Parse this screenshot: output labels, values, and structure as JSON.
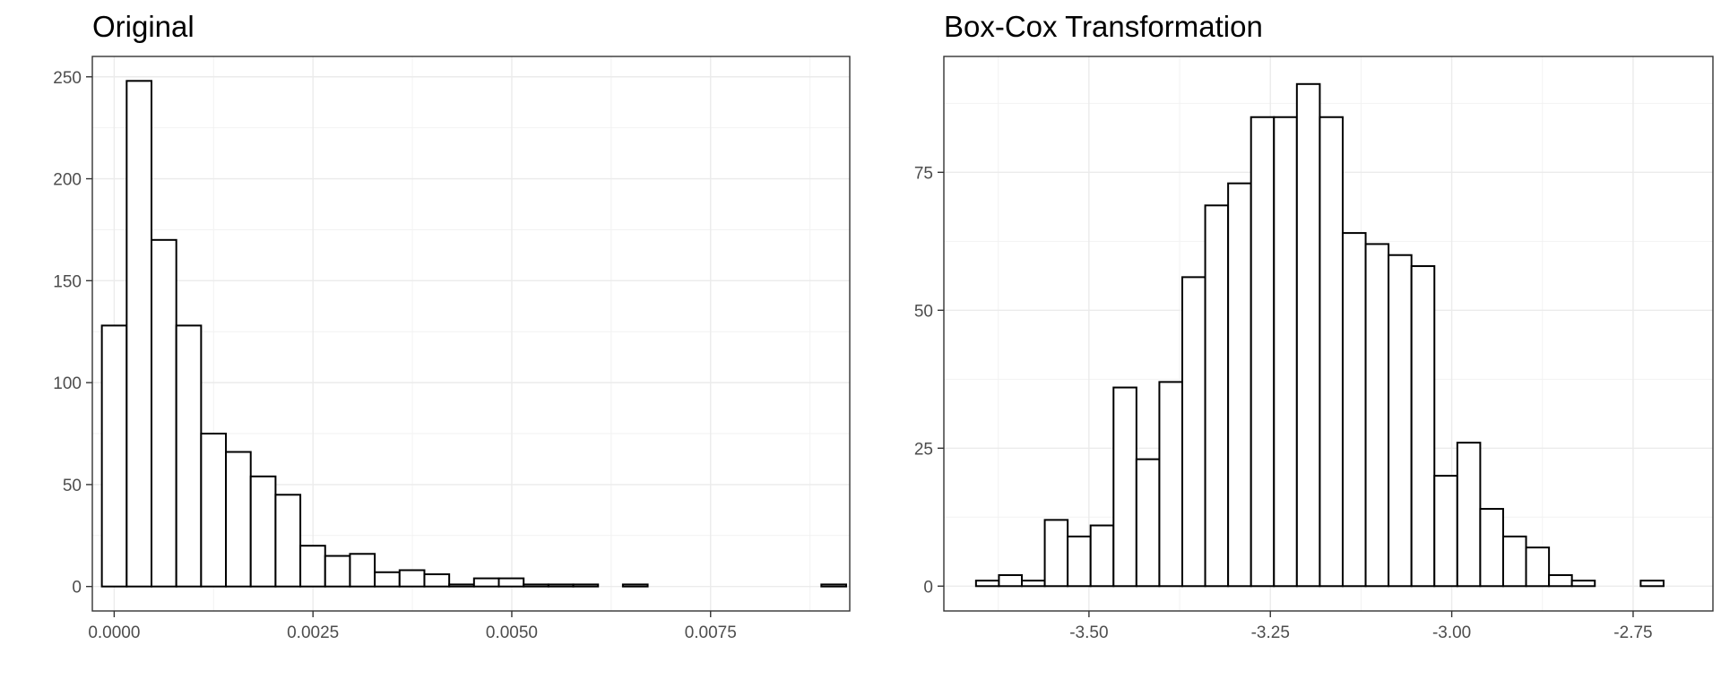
{
  "chart_data": [
    {
      "type": "bar",
      "title": "Original",
      "xlabel": "",
      "ylabel": "",
      "xlim": [
        -0.000275,
        0.00925
      ],
      "ylim": [
        -12,
        260
      ],
      "x_ticks": [
        0,
        0.0025,
        0.005,
        0.0075
      ],
      "x_tick_labels": [
        "0.0000",
        "0.0025",
        "0.0050",
        "0.0075"
      ],
      "y_ticks": [
        0,
        50,
        100,
        150,
        200,
        250
      ],
      "y_tick_labels": [
        "0",
        "50",
        "100",
        "150",
        "200",
        "250"
      ],
      "grid": true,
      "bin_start": -0.000155,
      "bin_width": 0.000312,
      "counts": [
        128,
        248,
        170,
        128,
        75,
        66,
        54,
        45,
        20,
        15,
        16,
        7,
        8,
        6,
        1,
        4,
        4,
        1,
        1,
        1,
        0,
        1,
        0,
        0,
        0,
        0,
        0,
        0,
        0,
        1
      ]
    },
    {
      "type": "bar",
      "title": "Box-Cox Transformation",
      "xlabel": "",
      "ylabel": "",
      "xlim": [
        -3.7,
        -2.64
      ],
      "ylim": [
        -4.5,
        96
      ],
      "x_ticks": [
        -3.5,
        -3.25,
        -3.0,
        -2.75
      ],
      "x_tick_labels": [
        "-3.50",
        "-3.25",
        "-3.00",
        "-2.75"
      ],
      "y_ticks": [
        0,
        25,
        50,
        75
      ],
      "y_tick_labels": [
        "0",
        "25",
        "50",
        "75"
      ],
      "grid": true,
      "bin_start": -3.6557,
      "bin_width": 0.03159,
      "counts": [
        1,
        2,
        1,
        12,
        9,
        11,
        36,
        23,
        37,
        56,
        69,
        73,
        85,
        85,
        91,
        85,
        64,
        62,
        60,
        58,
        20,
        26,
        14,
        9,
        7,
        2,
        1,
        0,
        0,
        1
      ]
    }
  ]
}
